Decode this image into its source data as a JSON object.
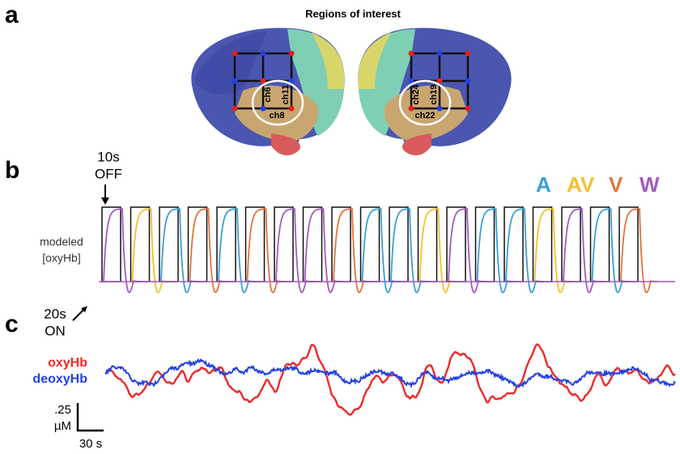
{
  "panels": {
    "a": "a",
    "b": "b",
    "c": "c"
  },
  "panel_a": {
    "title": "Regions of interest",
    "left_channels": [
      "ch6",
      "ch11",
      "ch8"
    ],
    "right_channels": [
      "ch24",
      "ch19",
      "ch22"
    ]
  },
  "panel_b": {
    "off_label": [
      "10s",
      "OFF"
    ],
    "y_label": [
      "modeled",
      "[oxyHb]"
    ],
    "conditions": [
      {
        "label": "A",
        "color": "#3a9fd6"
      },
      {
        "label": "AV",
        "color": "#f2c12e"
      },
      {
        "label": "V",
        "color": "#e2733a"
      },
      {
        "label": "W",
        "color": "#a25bbd"
      }
    ]
  },
  "panel_c": {
    "on_label": [
      "20s",
      "ON"
    ],
    "series": [
      {
        "name": "oxyHb",
        "color": "#ee2a2a"
      },
      {
        "name": "deoxyHb",
        "color": "#2340e8"
      }
    ],
    "scale_y": ".25",
    "scale_unit": "µM",
    "scale_x": "30 s"
  }
}
